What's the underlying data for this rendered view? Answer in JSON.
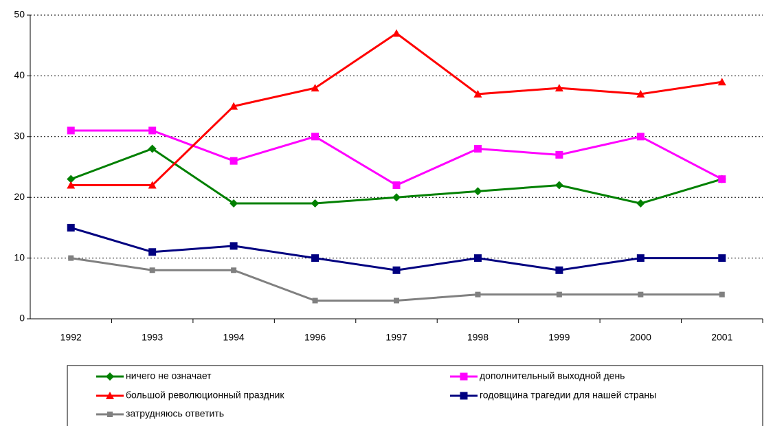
{
  "chart_data": {
    "type": "line",
    "categories": [
      "1992",
      "1993",
      "1994",
      "1996",
      "1997",
      "1998",
      "1999",
      "2000",
      "2001"
    ],
    "series": [
      {
        "name": "ничего не означает",
        "color": "#008000",
        "marker": "diamond",
        "values": [
          23,
          28,
          19,
          19,
          20,
          21,
          22,
          19,
          23
        ]
      },
      {
        "name": "дополнительный выходной день",
        "color": "#ff00ff",
        "marker": "square",
        "values": [
          31,
          31,
          26,
          30,
          22,
          28,
          27,
          30,
          23
        ]
      },
      {
        "name": "большой революционный праздник",
        "color": "#ff0000",
        "marker": "triangle",
        "values": [
          22,
          22,
          35,
          38,
          47,
          37,
          38,
          37,
          39
        ]
      },
      {
        "name": "годовщина трагедии для нашей страны",
        "color": "#000080",
        "marker": "square",
        "values": [
          15,
          11,
          12,
          10,
          8,
          10,
          8,
          10,
          10
        ]
      },
      {
        "name": "затрудняюсь ответить",
        "color": "#808080",
        "marker": "square",
        "values": [
          10,
          8,
          8,
          3,
          3,
          4,
          4,
          4,
          4
        ]
      }
    ],
    "ylim": [
      0,
      50
    ],
    "yticks": [
      0,
      10,
      20,
      30,
      40,
      50
    ],
    "grid": true,
    "legend": "bottom"
  }
}
